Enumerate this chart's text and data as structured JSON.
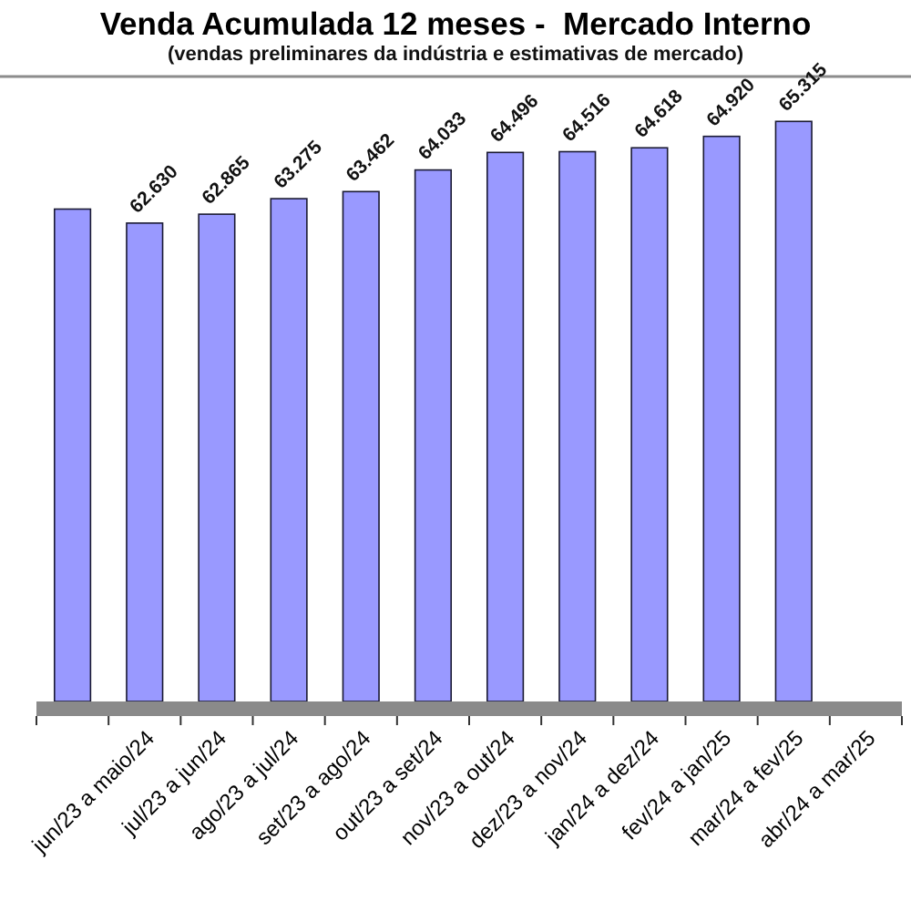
{
  "chart_data": {
    "type": "bar",
    "title": "Venda Acumulada 12 meses -  Mercado Interno",
    "subtitle": "(vendas preliminares da indústria e estimativas de mercado)",
    "categories": [
      null,
      "jun/23 a maio/24",
      "jul/23 a jun/24",
      "ago/23 a jul/24",
      "set/23 a ago/24",
      "out/23 a set/24",
      "nov/23 a out/24",
      "dez/23 a nov/24",
      "jan/24 a dez/24",
      "fev/24 a jan/25",
      "mar/24 a fev/25",
      "abr/24 a mar/25"
    ],
    "values": [
      63000,
      62630,
      62865,
      63275,
      63462,
      64033,
      64496,
      64516,
      64618,
      64920,
      65315,
      null
    ],
    "value_labels": [
      null,
      "62.630",
      "62.865",
      "63.275",
      "63.462",
      "64.033",
      "64.496",
      "64.516",
      "64.618",
      "64.920",
      "65.315",
      null
    ],
    "color": "#9999ff",
    "ylim": [
      50000,
      66500
    ],
    "tick_labels": "x"
  }
}
